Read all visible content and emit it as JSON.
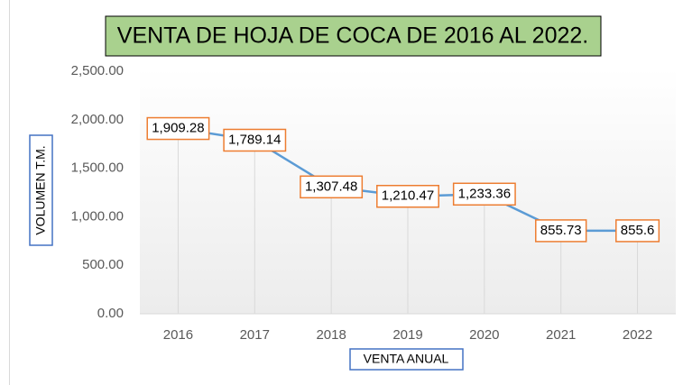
{
  "chart_data": {
    "type": "line",
    "title": "VENTA DE HOJA DE COCA DE 2016 AL 2022.",
    "x_label": "VENTA ANUAL",
    "y_label": "VOLUMEN T.M.",
    "categories": [
      "2016",
      "2017",
      "2018",
      "2019",
      "2020",
      "2021",
      "2022"
    ],
    "series": [
      {
        "name": "VOLUMEN T.M.",
        "color": "#5b9bd5",
        "values": [
          1909.28,
          1789.14,
          1307.48,
          1210.47,
          1233.36,
          855.73,
          855.6
        ],
        "value_labels": [
          "1,909.28",
          "1,789.14",
          "1,307.48",
          "1,210.47",
          "1,233.36",
          "855.73",
          "855.6"
        ]
      }
    ],
    "ylim": [
      0,
      2500
    ],
    "yticks": [
      {
        "value": 0,
        "label": "0.00"
      },
      {
        "value": 500,
        "label": "500.00"
      },
      {
        "value": 1000,
        "label": "1,000.00"
      },
      {
        "value": 1500,
        "label": "1,500.00"
      },
      {
        "value": 2000,
        "label": "2,000.00"
      },
      {
        "value": 2500,
        "label": "2,500.00"
      }
    ],
    "drop_lines": true
  }
}
